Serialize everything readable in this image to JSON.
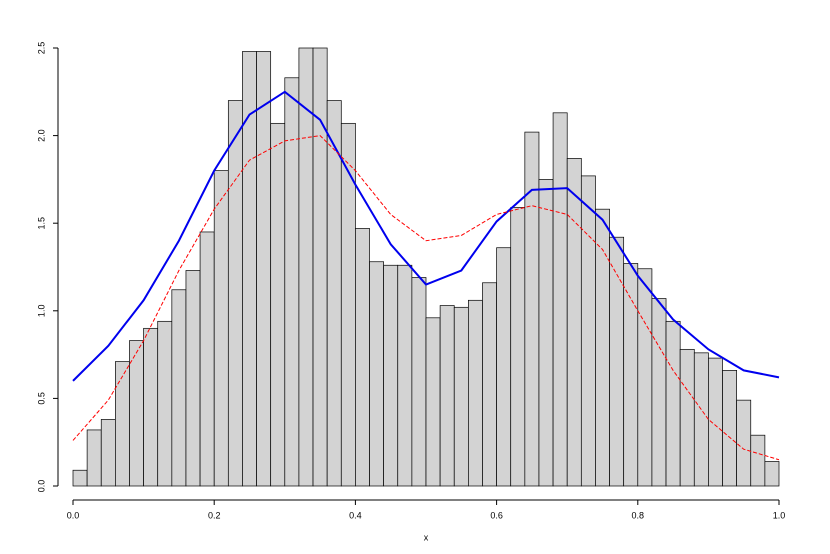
{
  "chart_data": {
    "type": "histogram",
    "xlabel": "x",
    "bins": [
      0,
      0.02,
      0.04,
      0.06,
      0.08,
      0.1,
      0.12,
      0.14,
      0.16,
      0.18,
      0.2,
      0.22,
      0.24,
      0.26,
      0.28,
      0.3,
      0.32,
      0.34,
      0.36,
      0.38,
      0.4,
      0.42,
      0.44,
      0.46,
      0.48,
      0.5,
      0.52,
      0.54,
      0.56,
      0.58,
      0.6,
      0.62,
      0.64,
      0.66,
      0.68,
      0.7,
      0.72,
      0.74,
      0.76,
      0.78,
      0.8,
      0.82,
      0.84,
      0.86,
      0.88,
      0.9,
      0.92,
      0.94,
      0.96,
      0.98,
      1
    ],
    "values": [
      0.09,
      0.32,
      0.38,
      0.71,
      0.83,
      0.9,
      0.94,
      1.12,
      1.23,
      1.45,
      1.8,
      2.2,
      2.48,
      2.48,
      2.07,
      2.33,
      2.5,
      2.5,
      2.2,
      2.07,
      1.47,
      1.28,
      1.26,
      1.26,
      1.19,
      0.96,
      1.03,
      1.02,
      1.06,
      1.16,
      1.36,
      1.59,
      2.02,
      1.75,
      2.13,
      1.87,
      1.77,
      1.58,
      1.42,
      1.27,
      1.24,
      1.07,
      0.94,
      0.78,
      0.76,
      0.73,
      0.66,
      0.49,
      0.29,
      0.14
    ],
    "color": "#d3d3d3",
    "curves": {
      "x": [
        0,
        0.05,
        0.1,
        0.15,
        0.2,
        0.25,
        0.3,
        0.35,
        0.4,
        0.45,
        0.5,
        0.55,
        0.6,
        0.65,
        0.7,
        0.75,
        0.8,
        0.85,
        0.9,
        0.95,
        1
      ],
      "series": [
        {
          "color": "#0000ee",
          "values": [
            0.6,
            0.8,
            1.06,
            1.4,
            1.8,
            2.12,
            2.25,
            2.09,
            1.72,
            1.38,
            1.15,
            1.23,
            1.51,
            1.69,
            1.7,
            1.52,
            1.2,
            0.95,
            0.78,
            0.66,
            0.62
          ]
        },
        {
          "color": "#ff0000",
          "values": [
            0.26,
            0.49,
            0.83,
            1.23,
            1.58,
            1.86,
            1.97,
            2.0,
            1.8,
            1.55,
            1.4,
            1.43,
            1.55,
            1.6,
            1.55,
            1.35,
            1.0,
            0.66,
            0.38,
            0.21,
            0.15
          ]
        }
      ]
    },
    "xlim": [
      0,
      1
    ],
    "xticks": [
      {
        "value": 0,
        "label": "0.0"
      },
      {
        "value": 0.2,
        "label": "0.2"
      },
      {
        "value": 0.4,
        "label": "0.4"
      },
      {
        "value": 0.6,
        "label": "0.6"
      },
      {
        "value": 0.8,
        "label": "0.8"
      },
      {
        "value": 1,
        "label": "1.0"
      }
    ],
    "ylim": [
      0,
      2.5
    ],
    "yticks": [
      {
        "value": 0,
        "label": "0.0"
      },
      {
        "value": 0.5,
        "label": "0.5"
      },
      {
        "value": 1,
        "label": "1.0"
      },
      {
        "value": 1.5,
        "label": "1.5"
      },
      {
        "value": 2,
        "label": "2.0"
      },
      {
        "value": 2.5,
        "label": "2.5"
      }
    ]
  }
}
